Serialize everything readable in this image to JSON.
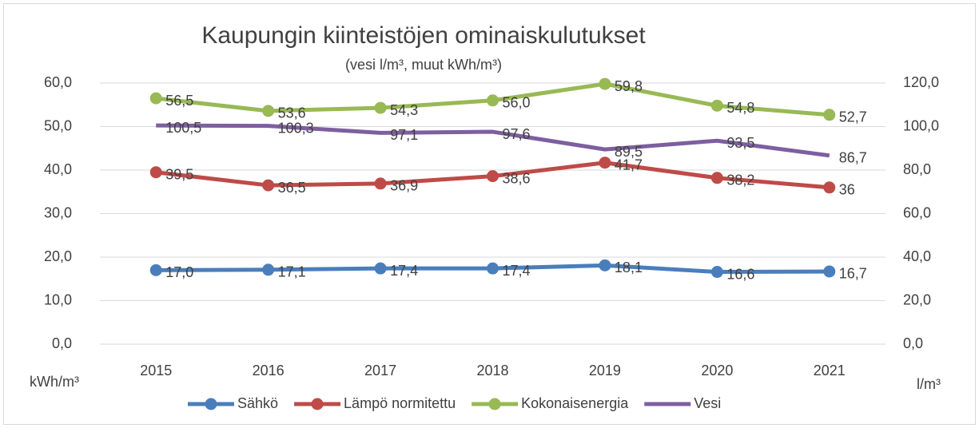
{
  "chart_data": {
    "type": "line",
    "title": "Kaupungin kiinteistöjen ominaiskulutukset",
    "subtitle": "(vesi l/m³, muut kWh/m³)",
    "y_label": "kWh/m³",
    "y2_label": "l/m³",
    "categories": [
      "2015",
      "2016",
      "2017",
      "2018",
      "2019",
      "2020",
      "2021"
    ],
    "ylim": [
      0,
      60
    ],
    "yticks": [
      {
        "value": 0,
        "label": "0,0"
      },
      {
        "value": 10,
        "label": "10,0"
      },
      {
        "value": 20,
        "label": "20,0"
      },
      {
        "value": 30,
        "label": "30,0"
      },
      {
        "value": 40,
        "label": "40,0"
      },
      {
        "value": 50,
        "label": "50,0"
      },
      {
        "value": 60,
        "label": "60,0"
      }
    ],
    "y2lim": [
      0,
      120
    ],
    "y2ticks": [
      {
        "value": 0,
        "label": "0,0"
      },
      {
        "value": 20,
        "label": "20,0"
      },
      {
        "value": 40,
        "label": "40,0"
      },
      {
        "value": 60,
        "label": "60,0"
      },
      {
        "value": 80,
        "label": "80,0"
      },
      {
        "value": 100,
        "label": "100,0"
      },
      {
        "value": 120,
        "label": "120,0"
      }
    ],
    "grid": true,
    "legend": "bottom",
    "series": [
      {
        "name": "Sähkö",
        "color": "#4a7ebb",
        "marker": true,
        "values": [
          17.0,
          17.1,
          17.4,
          17.4,
          18.1,
          16.6,
          16.7
        ],
        "value_labels": [
          "17,0",
          "17,1",
          "17,4",
          "17,4",
          "18,1",
          "16,6",
          "16,7"
        ]
      },
      {
        "name": "Lämpö normitettu",
        "color": "#be4b48",
        "marker": true,
        "values": [
          39.5,
          36.5,
          36.9,
          38.6,
          41.7,
          38.2,
          36
        ],
        "value_labels": [
          "39,5",
          "36,5",
          "36,9",
          "38,6",
          "41,7",
          "38,2",
          "36"
        ]
      },
      {
        "name": "Kokonaisenergia",
        "color": "#98b954",
        "marker": true,
        "values": [
          56.5,
          53.6,
          54.3,
          56.0,
          59.8,
          54.8,
          52.7
        ],
        "value_labels": [
          "56,5",
          "53,6",
          "54,3",
          "56,0",
          "59,8",
          "54,8",
          "52,7"
        ]
      },
      {
        "name": "Vesi",
        "color": "#7d5fa0",
        "marker": false,
        "axis": "y2",
        "values": [
          100.5,
          100.3,
          97.1,
          97.6,
          89.5,
          93.5,
          86.7
        ],
        "value_labels": [
          "100,5",
          "100,3",
          "97,1",
          "97,6",
          "89,5",
          "93,5",
          "86,7"
        ]
      }
    ]
  }
}
